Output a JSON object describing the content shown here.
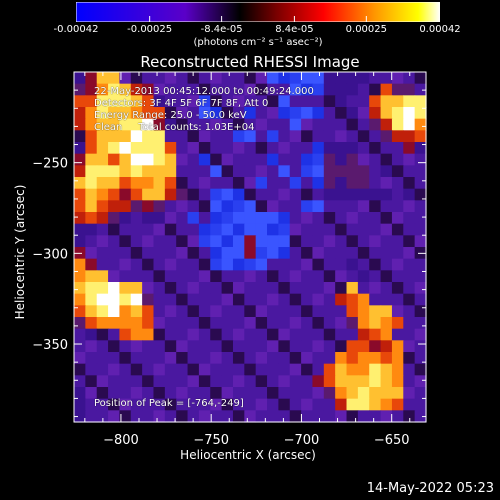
{
  "colorbar": {
    "ticks": [
      "-0.00042",
      "-0.00025",
      "-8.4e-05",
      "8.4e-05",
      "0.00025",
      "0.00042"
    ],
    "tick_values": [
      -0.00042,
      -0.00025,
      -8.4e-05,
      8.4e-05,
      0.00025,
      0.00042
    ],
    "range": [
      -0.00042,
      0.00042
    ],
    "unit_label": "(photons cm⁻² s⁻¹ asec⁻²)",
    "colors": [
      "#0000ff",
      "#5a00c8",
      "#000000",
      "#780000",
      "#ff0000",
      "#ff9600",
      "#ffff00",
      "#ffffff"
    ]
  },
  "chart_data": {
    "type": "heatmap",
    "title": "Reconstructed RHESSI Image",
    "xlabel": "Heliocentric X (arcsec)",
    "ylabel": "Heliocentric Y (arcsec)",
    "xlim": [
      -826,
      -631
    ],
    "ylim": [
      -393,
      -200
    ],
    "x_ticks": [
      -800,
      -750,
      -700,
      -650
    ],
    "y_ticks": [
      -250,
      -300,
      -350
    ],
    "annotations": [
      "22-May-2013 00:45:12.000 to 00:49:24.000",
      "Detectors: 3F 4F 5F 6F 7F 8F, Att 0",
      "Energy Range: 25.0 - 50.0 keV",
      "Clean     Total counts: 1.03E+04"
    ],
    "peak_label": "Position of Peak = [-764,-249]",
    "peak": [
      -764,
      -249
    ],
    "grid": false,
    "grid_size": [
      30,
      30
    ],
    "grid_values": [
      "1377000000000000011112111100000",
      "2368743000000000000111111005220",
      "5588875100010000001000010057788",
      "4687765500011001001111001047898",
      "4677889310000000000100000024896",
      "0577798800000011010000000002445",
      "1578988850000000000001111000031",
      "3775799870010000010011212000000",
      "4888787770001000001012222201000",
      "7877566750000000100101212200000",
      "5765357742001110000000111111010",
      "5754423200001111000011000000000",
      "4542101100101112211000000000000",
      "1100000000011112211000000000000",
      "1000000000011123221000000000000",
      "3000000000001223111000000000000",
      "6300000000001211100000001000000",
      "6770000000000000000000000100000",
      "7889770000000000000000007000000",
      "6899892000000000000000045600000",
      "5789675000000000000000005677000",
      "2566665000000000000000002676500",
      "0100566000000000000000000456000",
      "0000000000000000000000005534600",
      "0000000000000000000000065665600",
      "0000000000000000000000576687600",
      "0000000000000000000003577787600",
      "1000000000000000000000267877700",
      "1000000000000000000000048876500",
      "1000000000000000000000000000000"
    ]
  },
  "timestamp": "14-May-2022 05:23"
}
